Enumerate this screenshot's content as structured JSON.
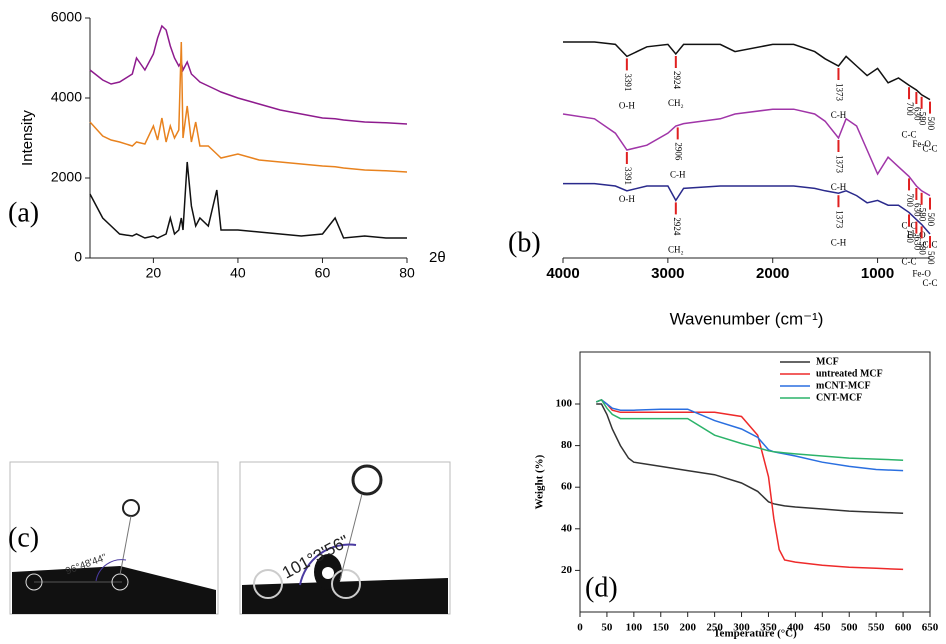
{
  "chart_data": [
    {
      "type": "line",
      "panel_label": "(a)",
      "x_label": "2θ",
      "y_label": "Intensity",
      "xlim": [
        5,
        80
      ],
      "ylim": [
        0,
        6000
      ],
      "xticks": [
        20,
        40,
        60,
        80
      ],
      "yticks": [
        0,
        2000,
        4000,
        6000
      ],
      "x": [
        5,
        8,
        10,
        12,
        15,
        16,
        18,
        20,
        21,
        22,
        23,
        24,
        25,
        26,
        26.6,
        27,
        28,
        29,
        30,
        31,
        33,
        35,
        36,
        40,
        45,
        50,
        55,
        60,
        63,
        65,
        70,
        75,
        80
      ],
      "series": [
        {
          "color": "#8e1b8e",
          "values": [
            4700,
            4450,
            4350,
            4400,
            4600,
            5000,
            4700,
            5100,
            5500,
            5800,
            5700,
            5300,
            5000,
            4800,
            4900,
            4700,
            4900,
            4600,
            4500,
            4400,
            4300,
            4200,
            4150,
            4000,
            3850,
            3700,
            3600,
            3500,
            3480,
            3450,
            3400,
            3380,
            3350
          ]
        },
        {
          "color": "#e8821e",
          "values": [
            3400,
            3050,
            2950,
            2900,
            2800,
            2900,
            2850,
            3300,
            2950,
            3500,
            2900,
            3300,
            3000,
            3200,
            5400,
            3000,
            3800,
            2900,
            3400,
            2800,
            2800,
            2600,
            2500,
            2600,
            2450,
            2400,
            2350,
            2300,
            2280,
            2250,
            2200,
            2180,
            2150
          ]
        },
        {
          "color": "#111111",
          "values": [
            1600,
            1000,
            800,
            600,
            550,
            600,
            500,
            550,
            500,
            550,
            600,
            1000,
            600,
            700,
            1000,
            700,
            2400,
            1300,
            800,
            1000,
            800,
            1700,
            700,
            700,
            650,
            600,
            550,
            600,
            1000,
            500,
            550,
            500,
            500
          ]
        }
      ]
    },
    {
      "type": "line",
      "panel_label": "(b)",
      "x_label": "Wavenumber (cm⁻¹)",
      "xlim": [
        4000,
        500
      ],
      "ylim": [
        0,
        100
      ],
      "xticks": [
        4000,
        3000,
        2000,
        1000
      ],
      "x": [
        4000,
        3700,
        3500,
        3391,
        3200,
        3000,
        2924,
        2850,
        2500,
        2360,
        2000,
        1800,
        1600,
        1500,
        1373,
        1300,
        1200,
        1100,
        1000,
        900,
        800,
        700,
        630,
        580,
        500
      ],
      "series": [
        {
          "color": "#111111",
          "values": [
            90,
            90,
            89,
            84,
            88,
            89,
            85,
            89,
            89,
            86,
            89,
            89,
            86,
            83,
            80,
            84,
            80,
            76,
            79,
            73,
            75,
            72,
            70,
            68,
            66
          ],
          "peaks": [
            {
              "value": 3391,
              "bond": "O-H"
            },
            {
              "value": 2924,
              "bond": "CH₂"
            },
            {
              "value": 1373,
              "bond": "C-H"
            },
            {
              "value": 700,
              "bond": "C-C"
            },
            {
              "value": 630
            },
            {
              "value": 580,
              "bond": "Fe-O"
            },
            {
              "value": 500,
              "bond": "C-C"
            }
          ]
        },
        {
          "color": "#a035a8",
          "values": [
            60,
            58,
            52,
            45,
            47,
            52,
            55,
            56,
            58,
            60,
            62,
            62,
            60,
            57,
            50,
            58,
            55,
            45,
            35,
            42,
            38,
            34,
            30,
            28,
            26
          ],
          "peaks": [
            {
              "value": 3391,
              "bond": "O-H"
            },
            {
              "value": 2906,
              "bond": "C-H"
            },
            {
              "value": 1373,
              "bond": "C-H"
            },
            {
              "value": 700,
              "bond": "C-C"
            },
            {
              "value": 630,
              "bond": "Fe-O"
            },
            {
              "value": 580
            },
            {
              "value": 500,
              "bond": "C-C"
            }
          ]
        },
        {
          "color": "#2a2a8c",
          "values": [
            31,
            31,
            30,
            28,
            30,
            30,
            24,
            29,
            30,
            30,
            30,
            30,
            29,
            28,
            27,
            28,
            26,
            23,
            24,
            22,
            22,
            19,
            16,
            14,
            10
          ],
          "peaks": [
            {
              "value": 2924,
              "bond": "CH₂"
            },
            {
              "value": 1373,
              "bond": "C-H"
            },
            {
              "value": 700,
              "bond": "C-C"
            },
            {
              "value": 630
            },
            {
              "value": 580,
              "bond": "Fe-O"
            },
            {
              "value": 500,
              "bond": "C-C"
            }
          ]
        }
      ]
    },
    {
      "type": "line",
      "panel_label": "(d)",
      "x_label": "Temperature (°C)",
      "y_label": "Weight (%)",
      "xlim": [
        0,
        650
      ],
      "ylim": [
        0,
        125
      ],
      "xticks": [
        0,
        50,
        100,
        150,
        200,
        250,
        300,
        350,
        400,
        450,
        500,
        550,
        600,
        650
      ],
      "yticks": [
        20,
        40,
        60,
        80,
        100
      ],
      "legend": "upper right",
      "x": [
        30,
        40,
        50,
        60,
        75,
        90,
        100,
        150,
        200,
        250,
        300,
        330,
        350,
        360,
        370,
        380,
        400,
        450,
        500,
        550,
        600
      ],
      "series": [
        {
          "name": "MCF",
          "color": "#333333",
          "values": [
            100,
            100,
            95,
            88,
            80,
            74,
            72,
            70,
            68,
            66,
            62,
            58,
            53,
            52,
            51.5,
            51,
            50.5,
            49.5,
            48.5,
            48,
            47.5
          ]
        },
        {
          "name": "untreated MCF",
          "color": "#ee2a2a",
          "values": [
            101,
            102,
            100,
            97,
            96,
            96,
            96,
            96,
            96,
            96,
            94,
            85,
            65,
            45,
            30,
            25,
            24,
            22.5,
            21.5,
            21,
            20.5
          ]
        },
        {
          "name": "mCNT-MCF",
          "color": "#2a6fe0",
          "values": [
            101,
            102,
            100,
            98,
            97,
            97,
            97,
            97.5,
            97.5,
            92,
            88,
            84,
            78,
            77,
            76.5,
            76,
            75,
            72,
            70,
            68.5,
            68
          ]
        },
        {
          "name": "CNT-MCF",
          "color": "#2cb36a",
          "values": [
            101,
            102,
            98,
            95,
            93,
            93,
            93,
            93,
            93,
            85,
            81,
            79,
            77.5,
            77,
            76.8,
            76.5,
            76,
            75,
            74,
            73.5,
            73
          ]
        }
      ]
    }
  ],
  "photo_panel": {
    "label": "(c)",
    "angles": [
      "96°48'44\"",
      "101°3'56\""
    ]
  }
}
